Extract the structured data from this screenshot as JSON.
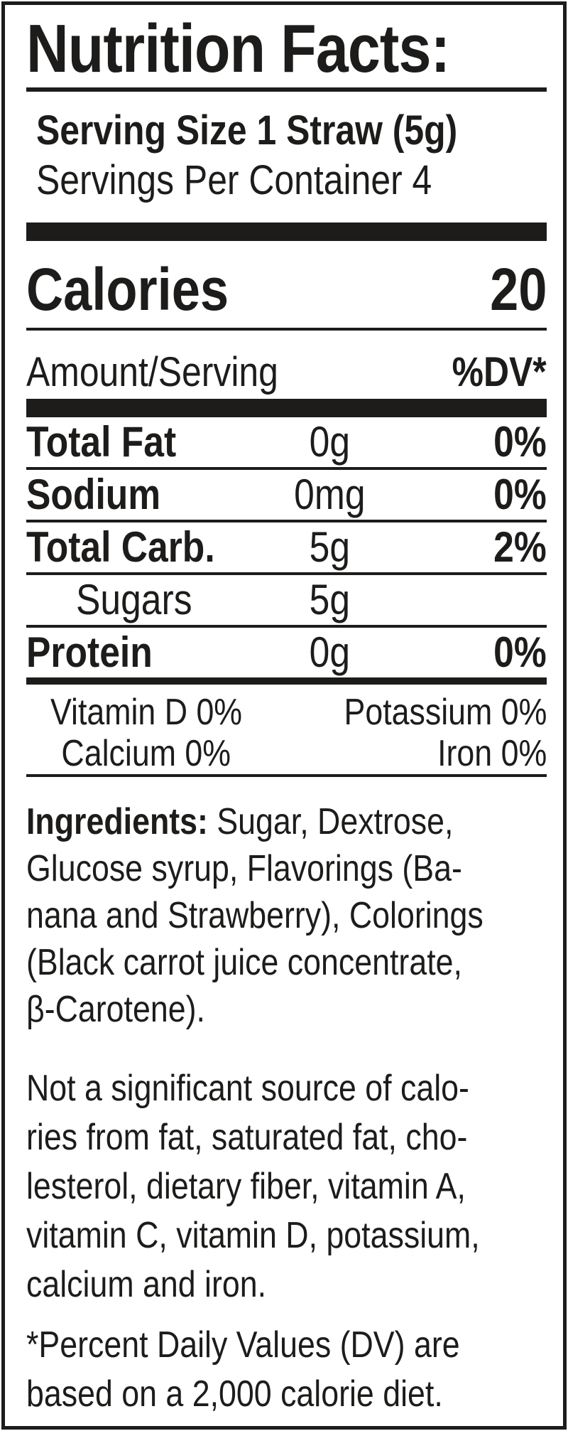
{
  "colors": {
    "ink": "#1d1c1b",
    "background": "#ffffff"
  },
  "label": {
    "title": "Nutrition Facts:",
    "serving_size": "Serving Size 1 Straw (5g)",
    "servings_per_container": "Servings Per Container 4",
    "calories_label": "Calories",
    "calories_value": "20",
    "amount_header": "Amount/Serving",
    "dv_header": "%DV*",
    "nutrients": [
      {
        "name": "Total Fat",
        "amount": "0g",
        "dv": "0%"
      },
      {
        "name": "Sodium",
        "amount": "0mg",
        "dv": "0%"
      },
      {
        "name": "Total Carb.",
        "amount": "5g",
        "dv": "2%"
      },
      {
        "name": "Sugars",
        "amount": "5g",
        "dv": ""
      },
      {
        "name": "Protein",
        "amount": "0g",
        "dv": "0%"
      }
    ],
    "micronutrients": [
      {
        "left": "Vitamin D 0%",
        "right": "Potassium 0%"
      },
      {
        "left": "Calcium 0%",
        "right": "Iron 0%"
      }
    ],
    "ingredients_heading": "Ingredients:",
    "ingredients_lines": [
      "Sugar, Dextrose,",
      "Glucose syrup, Flavorings (Ba-",
      "nana and Strawberry), Colorings",
      "(Black carrot juice concentrate,",
      "β-Carotene)."
    ],
    "disclaimer_lines": [
      "Not a significant source of calo-",
      "ries from fat, saturated fat, cho-",
      "lesterol, dietary fiber, vitamin A,",
      "vitamin C, vitamin D, potassium,",
      "calcium and iron."
    ],
    "footnote_lines": [
      "*Percent Daily Values (DV) are",
      "based on a 2,000 calorie diet."
    ]
  }
}
